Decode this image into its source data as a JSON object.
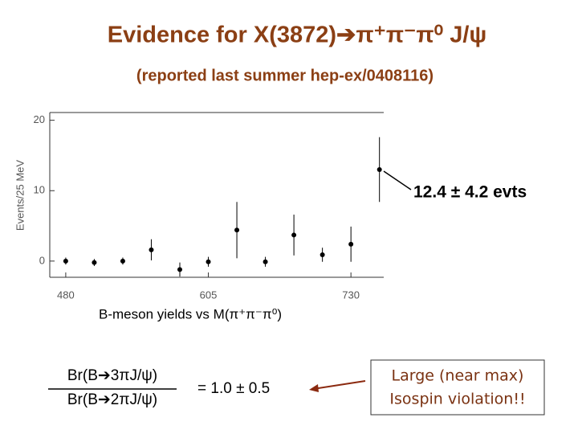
{
  "chart_data": {
    "type": "errorbar",
    "title": "Evidence for X(3872)➔π⁺π⁻π⁰ J/ψ",
    "subtitle": "(reported last summer hep-ex/0408116)",
    "y_label": "Events/25 MeV",
    "caption": "B-meson yields vs M(π⁺π⁻π⁰)",
    "annotation": "12.4 ± 4.2 evts",
    "x": [
      480,
      505,
      530,
      555,
      580,
      605,
      630,
      655,
      680,
      705,
      730,
      755
    ],
    "series": [
      {
        "color": "#000000",
        "values": [
          0,
          -0.2,
          0,
          1.6,
          -1.2,
          -0.1,
          4.4,
          -0.1,
          3.7,
          0.9,
          2.4,
          13.0
        ],
        "errors": [
          0.5,
          0.5,
          0.5,
          1.5,
          1.0,
          0.7,
          4.0,
          0.7,
          2.9,
          1.0,
          2.5,
          4.6
        ]
      }
    ],
    "xlim": [
      466,
      770
    ],
    "ylim": [
      -2.3,
      21.1
    ],
    "xticks": [
      480,
      605,
      730
    ],
    "yticks": [
      0,
      10,
      20
    ]
  },
  "slide": {
    "numerator": "Br(B➔3πJ/ψ)",
    "denominator": "Br(B➔2πJ/ψ)",
    "ratio": "= 1.0 ± 0.5",
    "conclusion": [
      "Large (near max)",
      "Isospin violation!!"
    ]
  }
}
